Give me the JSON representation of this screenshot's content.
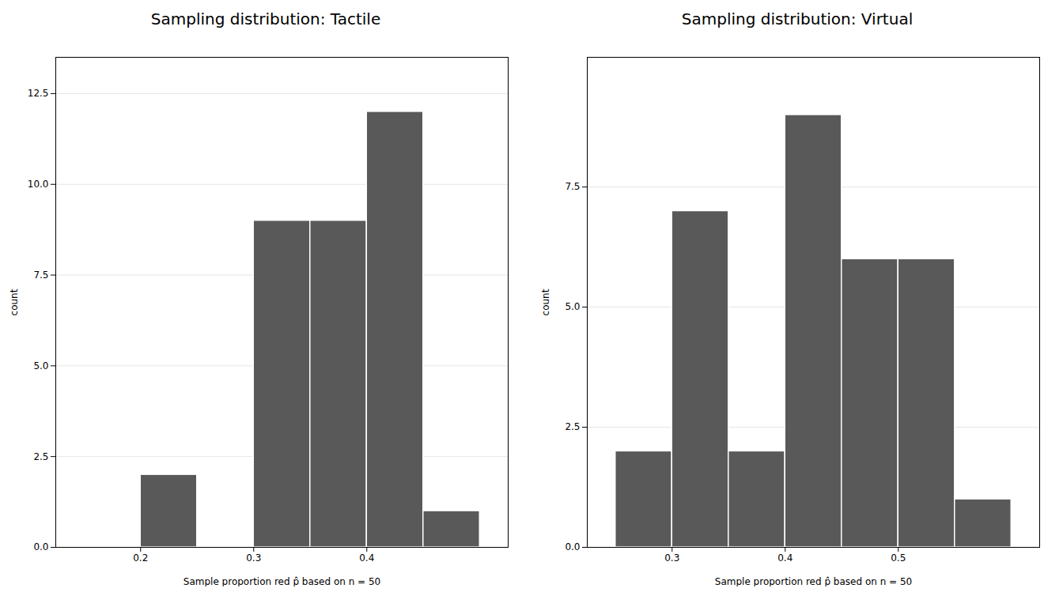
{
  "chart_data": [
    {
      "type": "histogram",
      "title": "Sampling distribution: Tactile",
      "bins": [
        0.15,
        0.2,
        0.25,
        0.3,
        0.35,
        0.4,
        0.45,
        0.5
      ],
      "values": [
        0,
        2,
        0,
        9,
        9,
        12,
        1
      ],
      "color": "#595959",
      "xlabel": "Sample proportion red p̂ based on n = 50",
      "ylabel": "count",
      "xlim": [
        0.125,
        0.525
      ],
      "xticks": [
        0.2,
        0.3,
        0.4
      ],
      "ylim": [
        0,
        13.5
      ],
      "yticks": [
        {
          "value": 0,
          "label": "0.0"
        },
        2.5,
        {
          "value": 5,
          "label": "5.0"
        },
        7.5,
        {
          "value": 10,
          "label": "10.0"
        },
        12.5
      ],
      "grid": true
    },
    {
      "type": "histogram",
      "title": "Sampling distribution: Virtual",
      "bins": [
        0.25,
        0.3,
        0.35,
        0.4,
        0.45,
        0.5,
        0.55,
        0.6
      ],
      "values": [
        2,
        7,
        2,
        9,
        6,
        6,
        1
      ],
      "color": "#595959",
      "xlabel": "Sample proportion red p̂ based on n = 50",
      "ylabel": "count",
      "xlim": [
        0.225,
        0.625
      ],
      "xticks": [
        0.3,
        0.4,
        0.5
      ],
      "ylim": [
        0,
        10.2
      ],
      "yticks": [
        {
          "value": 0,
          "label": "0.0"
        },
        2.5,
        {
          "value": 5,
          "label": "5.0"
        },
        7.5
      ],
      "grid": true
    }
  ]
}
